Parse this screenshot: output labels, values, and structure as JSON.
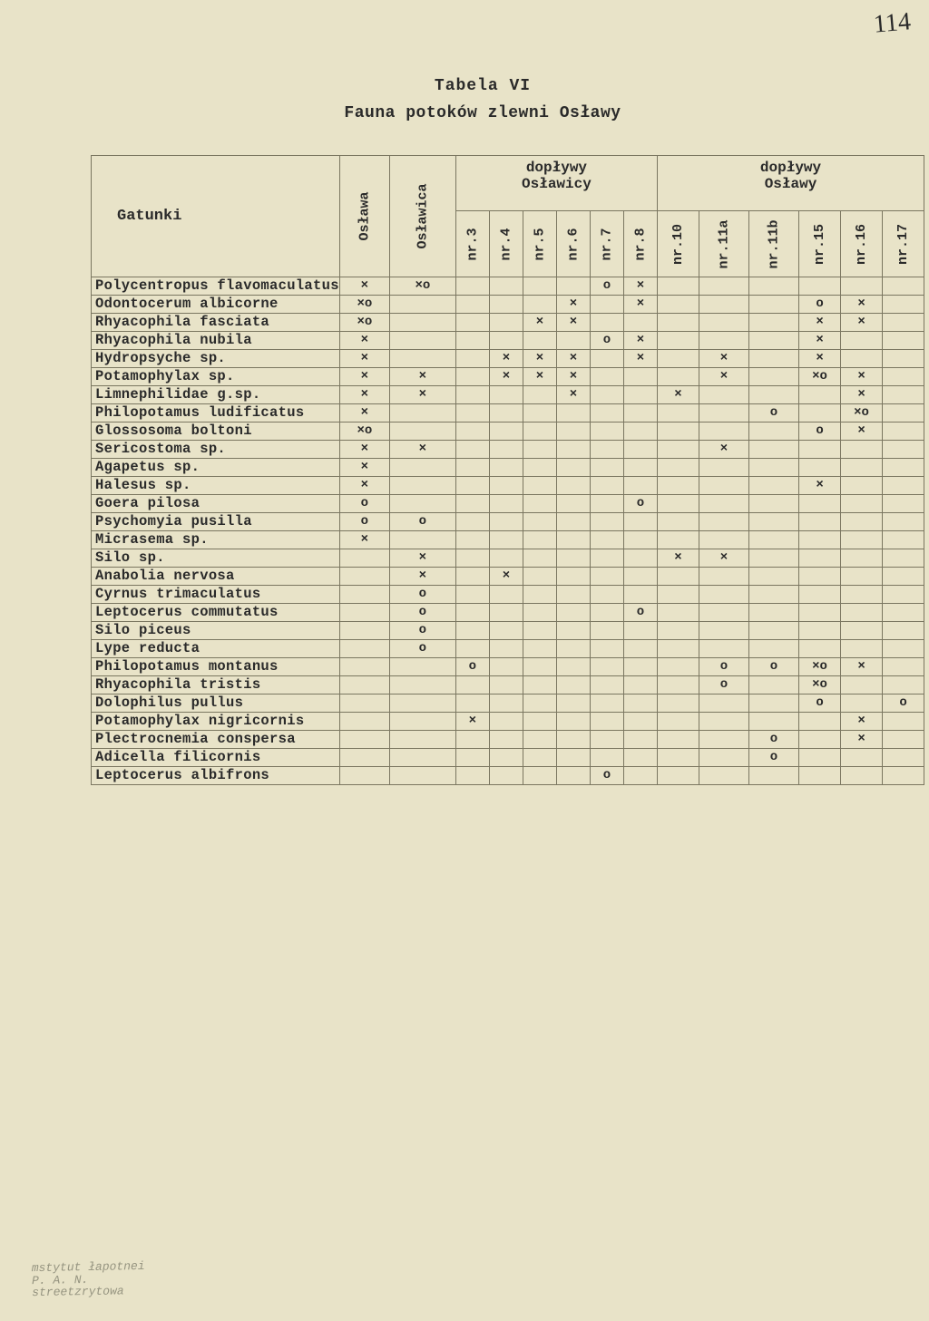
{
  "page_number_handwritten": "114",
  "title_line1": "Tabela  VI",
  "title_line2": "Fauna potoków zlewni Osławy",
  "corner_header": "Gatunki",
  "group_headers": {
    "doplywy_oslawicy": "dopływy\nOsławicy",
    "doplywy_oslawy": "dopływy\nOsławy"
  },
  "col_headers": [
    "Osława",
    "Osławica",
    "nr.3",
    "nr.4",
    "nr.5",
    "nr.6",
    "nr.7",
    "nr.8",
    "nr.10",
    "nr.11a",
    "nr.11b",
    "nr.15",
    "nr.16",
    "nr.17"
  ],
  "rows": [
    {
      "name": "Polycentropus flavomaculatus",
      "c": [
        "×",
        "×o",
        "",
        "",
        "",
        "",
        "o",
        "×",
        "",
        "",
        "",
        "",
        "",
        ""
      ]
    },
    {
      "name": "Odontocerum albicorne",
      "c": [
        "×o",
        "",
        "",
        "",
        "",
        "×",
        "",
        "×",
        "",
        "",
        "",
        "o",
        "×",
        ""
      ]
    },
    {
      "name": "Rhyacophila fasciata",
      "c": [
        "×o",
        "",
        "",
        "",
        "×",
        "×",
        "",
        "",
        "",
        "",
        "",
        "×",
        "×",
        ""
      ]
    },
    {
      "name": "Rhyacophila nubila",
      "c": [
        "×",
        "",
        "",
        "",
        "",
        "",
        "o",
        "×",
        "",
        "",
        "",
        "×",
        "",
        ""
      ]
    },
    {
      "name": "Hydropsyche sp.",
      "c": [
        "×",
        "",
        "",
        "×",
        "×",
        "×",
        "",
        "×",
        "",
        "×",
        "",
        "×",
        "",
        ""
      ]
    },
    {
      "name": "Potamophylax sp.",
      "c": [
        "×",
        "×",
        "",
        "×",
        "×",
        "×",
        "",
        "",
        "",
        "×",
        "",
        "×o",
        "×",
        ""
      ]
    },
    {
      "name": "Limnephilidae g.sp.",
      "c": [
        "×",
        "×",
        "",
        "",
        "",
        "×",
        "",
        "",
        "×",
        "",
        "",
        "",
        "×",
        ""
      ]
    },
    {
      "name": "Philopotamus ludificatus",
      "c": [
        "×",
        "",
        "",
        "",
        "",
        "",
        "",
        "",
        "",
        "",
        "o",
        "",
        "×o",
        ""
      ]
    },
    {
      "name": "Glossosoma boltoni",
      "c": [
        "×o",
        "",
        "",
        "",
        "",
        "",
        "",
        "",
        "",
        "",
        "",
        "o",
        "×",
        ""
      ]
    },
    {
      "name": "Sericostoma sp.",
      "c": [
        "×",
        "×",
        "",
        "",
        "",
        "",
        "",
        "",
        "",
        "×",
        "",
        "",
        "",
        ""
      ]
    },
    {
      "name": "Agapetus sp.",
      "c": [
        "×",
        "",
        "",
        "",
        "",
        "",
        "",
        "",
        "",
        "",
        "",
        "",
        "",
        ""
      ]
    },
    {
      "name": "Halesus sp.",
      "c": [
        "×",
        "",
        "",
        "",
        "",
        "",
        "",
        "",
        "",
        "",
        "",
        "×",
        "",
        ""
      ]
    },
    {
      "name": "Goera pilosa",
      "c": [
        "o",
        "",
        "",
        "",
        "",
        "",
        "",
        "o",
        "",
        "",
        "",
        "",
        "",
        ""
      ]
    },
    {
      "name": "Psychomyia pusilla",
      "c": [
        "o",
        "o",
        "",
        "",
        "",
        "",
        "",
        "",
        "",
        "",
        "",
        "",
        "",
        ""
      ]
    },
    {
      "name": "Micrasema sp.",
      "c": [
        "×",
        "",
        "",
        "",
        "",
        "",
        "",
        "",
        "",
        "",
        "",
        "",
        "",
        ""
      ]
    },
    {
      "name": "Silo sp.",
      "c": [
        "",
        "×",
        "",
        "",
        "",
        "",
        "",
        "",
        "×",
        "×",
        "",
        "",
        "",
        ""
      ]
    },
    {
      "name": "Anabolia nervosa",
      "c": [
        "",
        "×",
        "",
        "×",
        "",
        "",
        "",
        "",
        "",
        "",
        "",
        "",
        "",
        ""
      ]
    },
    {
      "name": "Cyrnus trimaculatus",
      "c": [
        "",
        "o",
        "",
        "",
        "",
        "",
        "",
        "",
        "",
        "",
        "",
        "",
        "",
        ""
      ]
    },
    {
      "name": "Leptocerus commutatus",
      "c": [
        "",
        "o",
        "",
        "",
        "",
        "",
        "",
        "o",
        "",
        "",
        "",
        "",
        "",
        ""
      ]
    },
    {
      "name": "Silo piceus",
      "c": [
        "",
        "o",
        "",
        "",
        "",
        "",
        "",
        "",
        "",
        "",
        "",
        "",
        "",
        ""
      ]
    },
    {
      "name": "Lype reducta",
      "c": [
        "",
        "o",
        "",
        "",
        "",
        "",
        "",
        "",
        "",
        "",
        "",
        "",
        "",
        ""
      ]
    },
    {
      "name": "Philopotamus montanus",
      "c": [
        "",
        "",
        "o",
        "",
        "",
        "",
        "",
        "",
        "",
        "o",
        "o",
        "×o",
        "×",
        ""
      ]
    },
    {
      "name": "Rhyacophila tristis",
      "c": [
        "",
        "",
        "",
        "",
        "",
        "",
        "",
        "",
        "",
        "o",
        "",
        "×o",
        "",
        ""
      ]
    },
    {
      "name": "Dolophilus pullus",
      "c": [
        "",
        "",
        "",
        "",
        "",
        "",
        "",
        "",
        "",
        "",
        "",
        "o",
        "",
        "o"
      ]
    },
    {
      "name": "Potamophylax nigricornis",
      "c": [
        "",
        "",
        "×",
        "",
        "",
        "",
        "",
        "",
        "",
        "",
        "",
        "",
        "×",
        ""
      ]
    },
    {
      "name": "Plectrocnemia conspersa",
      "c": [
        "",
        "",
        "",
        "",
        "",
        "",
        "",
        "",
        "",
        "",
        "o",
        "",
        "×",
        ""
      ]
    },
    {
      "name": "Adicella filicornis",
      "c": [
        "",
        "",
        "",
        "",
        "",
        "",
        "",
        "",
        "",
        "",
        "o",
        "",
        "",
        ""
      ]
    },
    {
      "name": "Leptocerus albifrons",
      "c": [
        "",
        "",
        "",
        "",
        "",
        "",
        "o",
        "",
        "",
        "",
        "",
        "",
        "",
        ""
      ]
    }
  ],
  "stamp_text": "mstytut łapotnei\nP. A. N.\nstreetzrytowa"
}
